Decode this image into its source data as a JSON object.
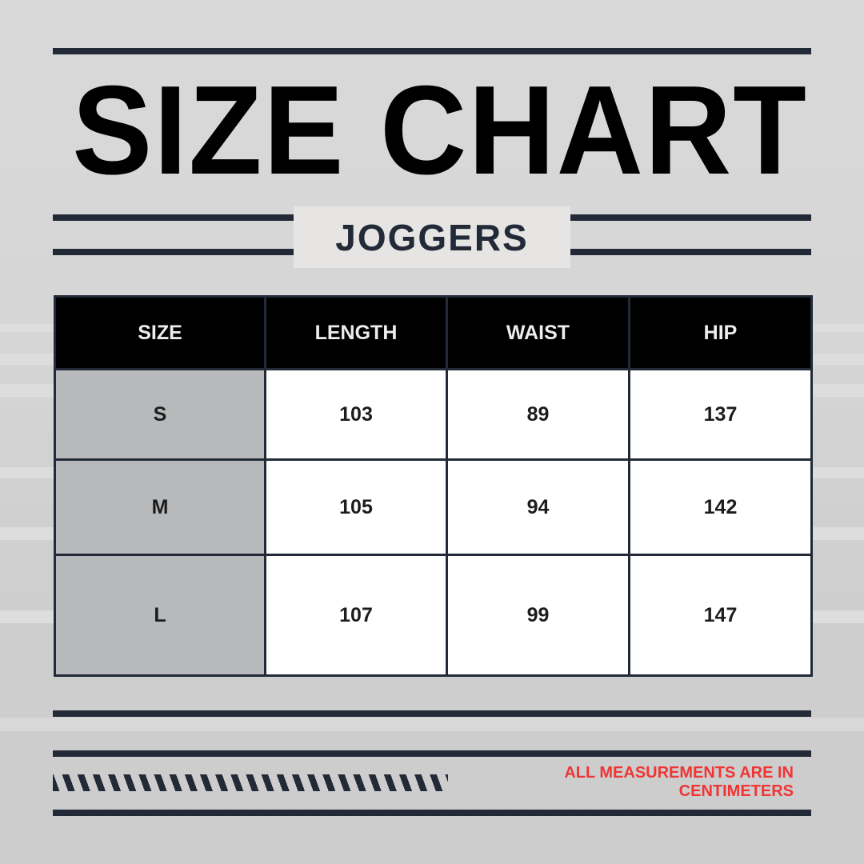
{
  "title": "SIZE CHART",
  "subtitle": "JOGGERS",
  "table": {
    "headers": [
      "SIZE",
      "LENGTH",
      "WAIST",
      "HIP"
    ],
    "rows": [
      [
        "S",
        "103",
        "89",
        "137"
      ],
      [
        "M",
        "105",
        "94",
        "142"
      ],
      [
        "L",
        "107",
        "99",
        "147"
      ]
    ]
  },
  "note": "ALL MEASUREMENTS ARE IN CENTIMETERS",
  "colors": {
    "accent": "#222a38",
    "note": "#f03535",
    "header_bg": "#000000",
    "size_col_bg": "#b8b9bb"
  }
}
